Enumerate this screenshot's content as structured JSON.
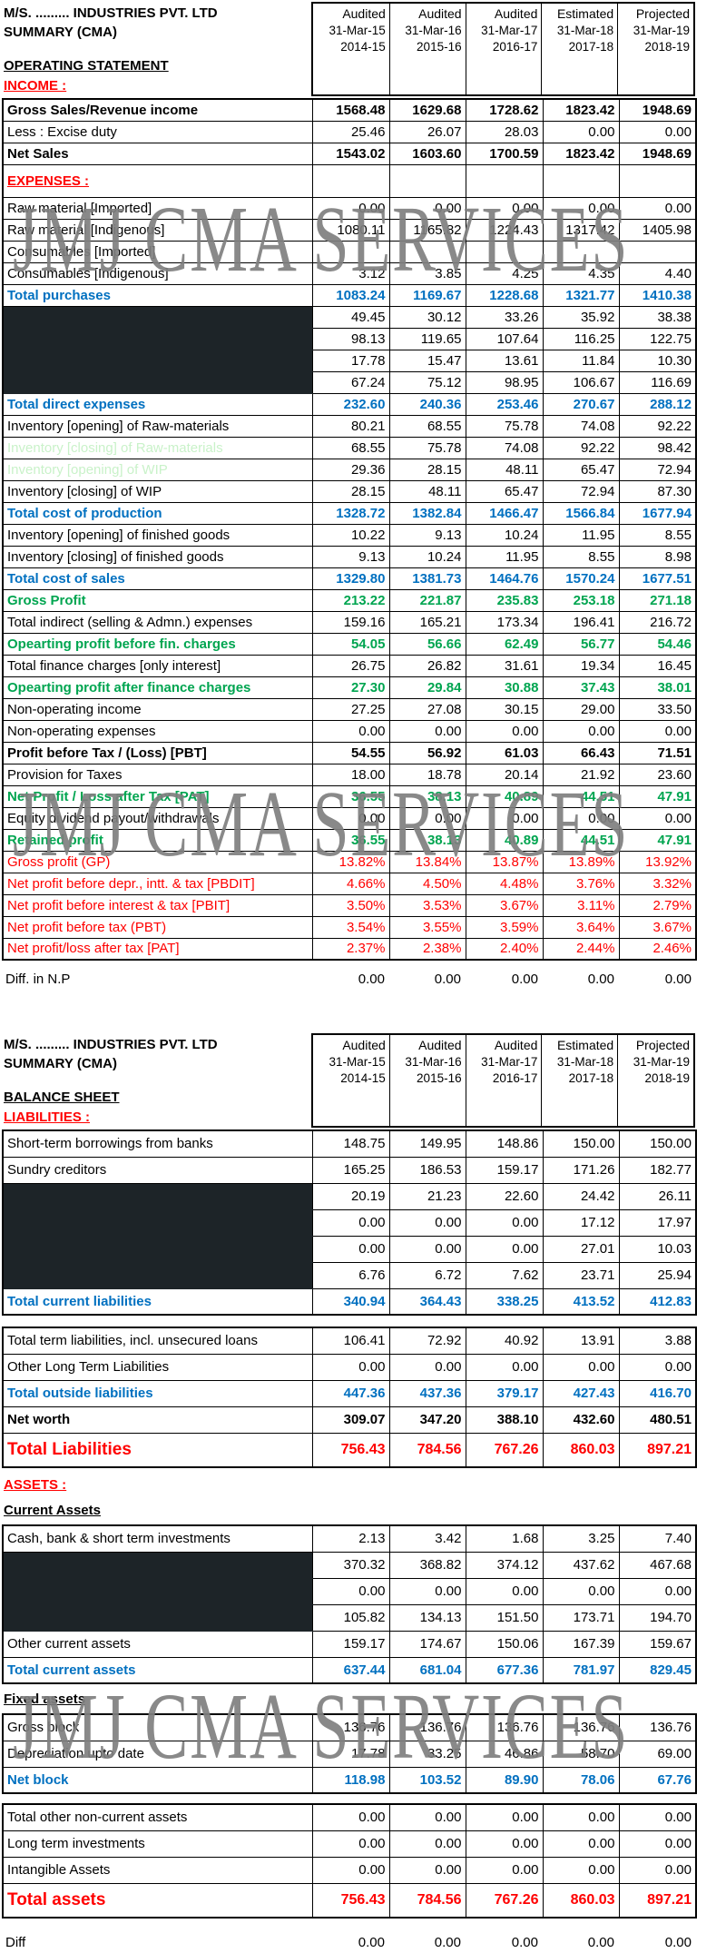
{
  "watermark": {
    "text": "JMJ CMA SERVICES"
  },
  "colors": {
    "total_blue": "#0070C0",
    "profit_green": "#00A550",
    "alert_red": "#FF0000",
    "inventory_label_green": "#C9F2C9",
    "redaction_black": "#1D2428",
    "watermark_gray": "#7F7F7F"
  },
  "columns": {
    "statuses": [
      "Audited",
      "Audited",
      "Audited",
      "Estimated",
      "Projected"
    ],
    "dates": [
      "31-Mar-15",
      "31-Mar-16",
      "31-Mar-17",
      "31-Mar-18",
      "31-Mar-19"
    ],
    "fiscal_years": [
      "2014-15",
      "2015-16",
      "2016-17",
      "2017-18",
      "2018-19"
    ]
  },
  "header1": {
    "company": "M/S. ......... INDUSTRIES  PVT. LTD",
    "summary": "SUMMARY  (CMA)",
    "statement_label": "OPERATING STATEMENT",
    "income_label": "INCOME :"
  },
  "operating": {
    "rows": [
      {
        "label": "Gross Sales/Revenue income",
        "style": "bold",
        "values": [
          "1568.48",
          "1629.68",
          "1728.62",
          "1823.42",
          "1948.69"
        ]
      },
      {
        "label": "Less : Excise duty",
        "style": "plain",
        "values": [
          "25.46",
          "26.07",
          "28.03",
          "0.00",
          "0.00"
        ]
      },
      {
        "label": "Net Sales",
        "style": "bold",
        "values": [
          "1543.02",
          "1603.60",
          "1700.59",
          "1823.42",
          "1948.69"
        ]
      },
      {
        "label": "EXPENSES :",
        "style": "section",
        "values": [
          "",
          "",
          "",
          "",
          ""
        ]
      },
      {
        "label": "Raw material [Imported]",
        "style": "plain",
        "values": [
          "0.00",
          "0.00",
          "0.00",
          "0.00",
          "0.00"
        ]
      },
      {
        "label": "Raw material [Indigenous]",
        "style": "plain",
        "values": [
          "1080.11",
          "1165.82",
          "1224.43",
          "1317.42",
          "1405.98"
        ]
      },
      {
        "label": "Consumables [Imported]",
        "style": "plain",
        "values": [
          "",
          "",
          "",
          "",
          ""
        ]
      },
      {
        "label": "Consumables [Indigenous]",
        "style": "plain",
        "values": [
          "3.12",
          "3.85",
          "4.25",
          "4.35",
          "4.40"
        ]
      },
      {
        "label": "Total purchases",
        "style": "blue",
        "values": [
          "1083.24",
          "1169.67",
          "1228.68",
          "1321.77",
          "1410.38"
        ]
      },
      {
        "label": "",
        "style": "plain",
        "redacted": true,
        "values": [
          "49.45",
          "30.12",
          "33.26",
          "35.92",
          "38.38"
        ]
      },
      {
        "label": "",
        "style": "plain",
        "redacted": true,
        "values": [
          "98.13",
          "119.65",
          "107.64",
          "116.25",
          "122.75"
        ]
      },
      {
        "label": "",
        "style": "plain",
        "redacted": true,
        "values": [
          "17.78",
          "15.47",
          "13.61",
          "11.84",
          "10.30"
        ]
      },
      {
        "label": "",
        "style": "plain",
        "redacted": true,
        "values": [
          "67.24",
          "75.12",
          "98.95",
          "106.67",
          "116.69"
        ]
      },
      {
        "label": "Total direct expenses",
        "style": "blue",
        "values": [
          "232.60",
          "240.36",
          "253.46",
          "270.67",
          "288.12"
        ]
      },
      {
        "label": "Inventory [opening] of  Raw-materials",
        "style": "plain",
        "values": [
          "80.21",
          "68.55",
          "75.78",
          "74.08",
          "92.22"
        ]
      },
      {
        "label": "Inventory [closing] of Raw-materials",
        "style": "lightgreen",
        "values": [
          "68.55",
          "75.78",
          "74.08",
          "92.22",
          "98.42"
        ]
      },
      {
        "label": "Inventory [opening] of WIP",
        "style": "lightgreen",
        "values": [
          "29.36",
          "28.15",
          "48.11",
          "65.47",
          "72.94"
        ]
      },
      {
        "label": "Inventory [closing] of WIP",
        "style": "plain",
        "values": [
          "28.15",
          "48.11",
          "65.47",
          "72.94",
          "87.30"
        ]
      },
      {
        "label": "Total cost of production",
        "style": "blue",
        "values": [
          "1328.72",
          "1382.84",
          "1466.47",
          "1566.84",
          "1677.94"
        ]
      },
      {
        "label": "Inventory [opening] of finished goods",
        "style": "plain",
        "values": [
          "10.22",
          "9.13",
          "10.24",
          "11.95",
          "8.55"
        ]
      },
      {
        "label": "Inventory [closing] of finished goods",
        "style": "plain",
        "values": [
          "9.13",
          "10.24",
          "11.95",
          "8.55",
          "8.98"
        ]
      },
      {
        "label": "Total cost of sales",
        "style": "blue",
        "values": [
          "1329.80",
          "1381.73",
          "1464.76",
          "1570.24",
          "1677.51"
        ]
      },
      {
        "label": "Gross Profit",
        "style": "green",
        "values": [
          "213.22",
          "221.87",
          "235.83",
          "253.18",
          "271.18"
        ]
      },
      {
        "label": "Total indirect (selling & Admn.) expenses",
        "style": "plain",
        "values": [
          "159.16",
          "165.21",
          "173.34",
          "196.41",
          "216.72"
        ]
      },
      {
        "label": "Opearting profit before fin. charges",
        "style": "green",
        "values": [
          "54.05",
          "56.66",
          "62.49",
          "56.77",
          "54.46"
        ]
      },
      {
        "label": "Total finance charges [only interest]",
        "style": "plain",
        "values": [
          "26.75",
          "26.82",
          "31.61",
          "19.34",
          "16.45"
        ]
      },
      {
        "label": "Opearting profit after finance charges",
        "style": "green",
        "values": [
          "27.30",
          "29.84",
          "30.88",
          "37.43",
          "38.01"
        ]
      },
      {
        "label": "Non-operating income",
        "style": "plain",
        "values": [
          "27.25",
          "27.08",
          "30.15",
          "29.00",
          "33.50"
        ]
      },
      {
        "label": "Non-operating expenses",
        "style": "plain",
        "values": [
          "0.00",
          "0.00",
          "0.00",
          "0.00",
          "0.00"
        ]
      },
      {
        "label": "Profit before Tax / (Loss) [PBT]",
        "style": "bold",
        "values": [
          "54.55",
          "56.92",
          "61.03",
          "66.43",
          "71.51"
        ]
      },
      {
        "label": "Provision for Taxes",
        "style": "plain",
        "values": [
          "18.00",
          "18.78",
          "20.14",
          "21.92",
          "23.60"
        ]
      },
      {
        "label": "Net Profit / Loss after Tax [PAT]",
        "style": "green",
        "values": [
          "36.55",
          "38.13",
          "40.89",
          "44.51",
          "47.91"
        ]
      },
      {
        "label": "Equity dividend payout/withdrawals",
        "style": "plain",
        "values": [
          "0.00",
          "0.00",
          "0.00",
          "0.00",
          "0.00"
        ]
      },
      {
        "label": "Retained profit",
        "style": "green",
        "values": [
          "36.55",
          "38.13",
          "40.89",
          "44.51",
          "47.91"
        ]
      },
      {
        "label": "Gross profit (GP)",
        "style": "red",
        "values": [
          "13.82%",
          "13.84%",
          "13.87%",
          "13.89%",
          "13.92%"
        ]
      },
      {
        "label": "Net profit before depr., intt. & tax [PBDIT]",
        "style": "red",
        "values": [
          "4.66%",
          "4.50%",
          "4.48%",
          "3.76%",
          "3.32%"
        ]
      },
      {
        "label": "Net profit before interest & tax [PBIT]",
        "style": "red",
        "values": [
          "3.50%",
          "3.53%",
          "3.67%",
          "3.11%",
          "2.79%"
        ]
      },
      {
        "label": "Net profit before tax (PBT)",
        "style": "red",
        "values": [
          "3.54%",
          "3.55%",
          "3.59%",
          "3.64%",
          "3.67%"
        ]
      },
      {
        "label": "Net profit/loss after tax  [PAT]",
        "style": "red",
        "values": [
          "2.37%",
          "2.38%",
          "2.40%",
          "2.44%",
          "2.46%"
        ]
      }
    ],
    "diff_row": {
      "label": "Diff. in N.P",
      "style": "footer",
      "values": [
        "0.00",
        "0.00",
        "0.00",
        "0.00",
        "0.00"
      ]
    }
  },
  "header2": {
    "company": "M/S. ......... INDUSTRIES  PVT. LTD",
    "summary": "SUMMARY  (CMA)",
    "sheet_label": "BALANCE SHEET",
    "liabilities_label": "LIABILITIES :"
  },
  "balance": {
    "assets_label": "ASSETS :",
    "current_assets_label": "Current Assets",
    "fixed_assets_label": "Fixed assets",
    "block_current_liabilities": [
      {
        "label": "Short-term borrowings from banks",
        "style": "plain",
        "values": [
          "148.75",
          "149.95",
          "148.86",
          "150.00",
          "150.00"
        ]
      },
      {
        "label": "Sundry creditors",
        "style": "plain",
        "values": [
          "165.25",
          "186.53",
          "159.17",
          "171.26",
          "182.77"
        ]
      },
      {
        "label": "",
        "style": "plain",
        "redacted": true,
        "values": [
          "20.19",
          "21.23",
          "22.60",
          "24.42",
          "26.11"
        ]
      },
      {
        "label": "",
        "style": "plain",
        "redacted": true,
        "values": [
          "0.00",
          "0.00",
          "0.00",
          "17.12",
          "17.97"
        ]
      },
      {
        "label": "",
        "style": "plain",
        "redacted": true,
        "values": [
          "0.00",
          "0.00",
          "0.00",
          "27.01",
          "10.03"
        ]
      },
      {
        "label": "",
        "style": "plain",
        "redacted": true,
        "values": [
          "6.76",
          "6.72",
          "7.62",
          "23.71",
          "25.94"
        ]
      },
      {
        "label": "Total current liabilities",
        "style": "blue",
        "values": [
          "340.94",
          "364.43",
          "338.25",
          "413.52",
          "412.83"
        ]
      }
    ],
    "block_long_term": [
      {
        "label": "Total term liabilities, incl. unsecured loans",
        "style": "plain",
        "values": [
          "106.41",
          "72.92",
          "40.92",
          "13.91",
          "3.88"
        ]
      },
      {
        "label": "Other Long Term Liabilities",
        "style": "plain",
        "values": [
          "0.00",
          "0.00",
          "0.00",
          "0.00",
          "0.00"
        ]
      },
      {
        "label": "Total outside liabilities",
        "style": "blue",
        "values": [
          "447.36",
          "437.36",
          "379.17",
          "427.43",
          "416.70"
        ]
      },
      {
        "label": "Net worth",
        "style": "bold",
        "values": [
          "309.07",
          "347.20",
          "388.10",
          "432.60",
          "480.51"
        ]
      },
      {
        "label": "Total  Liabilities",
        "style": "red-lg",
        "values": [
          "756.43",
          "784.56",
          "767.26",
          "860.03",
          "897.21"
        ]
      }
    ],
    "block_current_assets": [
      {
        "label": "Cash, bank & short term  investments",
        "style": "plain",
        "values": [
          "2.13",
          "3.42",
          "1.68",
          "3.25",
          "7.40"
        ]
      },
      {
        "label": "",
        "style": "plain",
        "redacted": true,
        "values": [
          "370.32",
          "368.82",
          "374.12",
          "437.62",
          "467.68"
        ]
      },
      {
        "label": "",
        "style": "plain",
        "redacted": true,
        "values": [
          "0.00",
          "0.00",
          "0.00",
          "0.00",
          "0.00"
        ]
      },
      {
        "label": "",
        "style": "plain",
        "redacted": true,
        "values": [
          "105.82",
          "134.13",
          "151.50",
          "173.71",
          "194.70"
        ]
      },
      {
        "label": "Other current assets",
        "style": "plain",
        "values": [
          "159.17",
          "174.67",
          "150.06",
          "167.39",
          "159.67"
        ]
      },
      {
        "label": "Total current assets",
        "style": "blue",
        "values": [
          "637.44",
          "681.04",
          "677.36",
          "781.97",
          "829.45"
        ]
      }
    ],
    "block_fixed_assets": [
      {
        "label": "Gross block",
        "style": "plain",
        "values": [
          "136.76",
          "136.76",
          "136.76",
          "136.76",
          "136.76"
        ]
      },
      {
        "label": "Depreciation upto date",
        "style": "plain",
        "values": [
          "17.78",
          "33.25",
          "46.86",
          "58.70",
          "69.00"
        ]
      },
      {
        "label": "Net block",
        "style": "blue",
        "values": [
          "118.98",
          "103.52",
          "89.90",
          "78.06",
          "67.76"
        ]
      }
    ],
    "block_other_assets": [
      {
        "label": "Total other non-current assets",
        "style": "plain",
        "values": [
          "0.00",
          "0.00",
          "0.00",
          "0.00",
          "0.00"
        ]
      },
      {
        "label": "Long term investments",
        "style": "plain",
        "values": [
          "0.00",
          "0.00",
          "0.00",
          "0.00",
          "0.00"
        ]
      },
      {
        "label": "Intangible Assets",
        "style": "plain",
        "values": [
          "0.00",
          "0.00",
          "0.00",
          "0.00",
          "0.00"
        ]
      },
      {
        "label": "Total assets",
        "style": "red-lg",
        "values": [
          "756.43",
          "784.56",
          "767.26",
          "860.03",
          "897.21"
        ]
      }
    ],
    "diff_row": {
      "label": "Diff",
      "style": "footer",
      "values": [
        "0.00",
        "0.00",
        "0.00",
        "0.00",
        "0.00"
      ]
    }
  }
}
